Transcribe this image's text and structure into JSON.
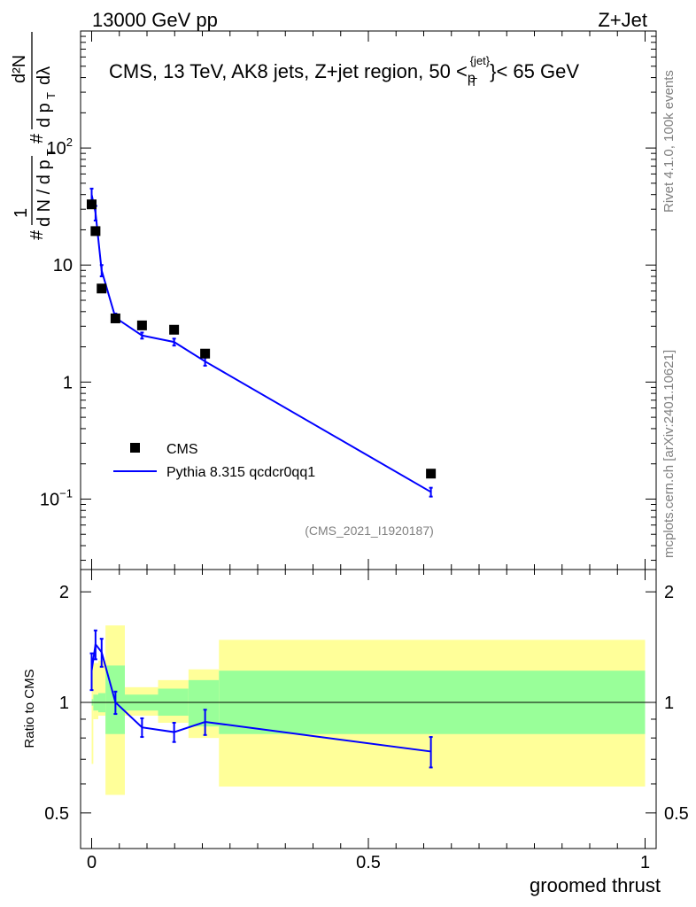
{
  "header": {
    "left": "13000 GeV pp",
    "right": "Z+Jet"
  },
  "side_labels": {
    "rivet": "Rivet 4.1.0,  100k events",
    "mcplots": "mcplots.cern.ch [arXiv:2401.10621]"
  },
  "main_plot": {
    "title_parts": {
      "prefix": "CMS, 13 TeV, AK8 jets, Z+jet region, 50 <",
      "p": "p",
      "sup": "{jet}",
      "sub": "T",
      "suffix": "}< 65 GeV"
    },
    "ylabel": "# 1/(dN/dp_T)  # d²N/(dp_T dλ)",
    "ylabel_parts": {
      "hash": "#",
      "one": "1",
      "dn": "d N / d p",
      "t": "T",
      "d2n": "d²N",
      "dpdl": "d p",
      "dl": "dλ"
    },
    "y_ticks": [
      {
        "v": 0.1,
        "base": "10",
        "exp": "−1"
      },
      {
        "v": 1,
        "label": "1"
      },
      {
        "v": 10,
        "label": "10"
      },
      {
        "v": 100,
        "base": "10",
        "exp": "2"
      }
    ],
    "analysis_tag": "(CMS_2021_I1920187)",
    "legend": [
      {
        "label": "CMS",
        "color": "#000000"
      },
      {
        "label": "Pythia 8.315 qcdcr0qq1",
        "color": "#0000ff"
      }
    ]
  },
  "ratio_plot": {
    "ylabel": "Ratio to CMS",
    "y_ticks": [
      {
        "v": 0.5,
        "label": "0.5"
      },
      {
        "v": 1,
        "label": "1"
      },
      {
        "v": 2,
        "label": "2"
      }
    ]
  },
  "x_axis": {
    "label": "groomed thrust",
    "ticks": [
      {
        "v": 0,
        "label": "0"
      },
      {
        "v": 0.5,
        "label": "0.5"
      },
      {
        "v": 1,
        "label": "1"
      }
    ]
  },
  "colors": {
    "mc": "#0000ff",
    "band_outer": "#ffff99",
    "band_inner": "#99ff99"
  },
  "chart_data": {
    "type": "scatter",
    "title": "CMS, 13 TeV, AK8 jets, Z+jet region, 50 < p_T^{jet} < 65 GeV",
    "xlabel": "groomed thrust",
    "xlim": [
      -0.02,
      1.02
    ],
    "main_ylim": [
      0.025,
      1000
    ],
    "main_yscale": "log",
    "ratio_ylim": [
      0.4,
      2.3
    ],
    "ratio_yscale": "log",
    "series": [
      {
        "name": "CMS",
        "x": [
          0.0,
          0.007,
          0.018,
          0.043,
          0.091,
          0.149,
          0.205,
          0.613
        ],
        "y": [
          33,
          19.5,
          6.3,
          3.5,
          3.05,
          2.8,
          1.75,
          0.165
        ]
      },
      {
        "name": "Pythia 8.315 qcdcr0qq1",
        "x": [
          0.0,
          0.007,
          0.018,
          0.043,
          0.091,
          0.149,
          0.205,
          0.613
        ],
        "y": [
          40,
          28,
          9,
          3.55,
          2.5,
          2.2,
          1.5,
          0.115
        ],
        "yerr": [
          5,
          4,
          1,
          0.3,
          0.15,
          0.15,
          0.12,
          0.01
        ]
      }
    ],
    "ratio": {
      "name": "Pythia 8.315 qcdcr0qq1 / CMS",
      "x": [
        0.0,
        0.007,
        0.018,
        0.043,
        0.091,
        0.149,
        0.205,
        0.613
      ],
      "y": [
        1.22,
        1.44,
        1.37,
        1.0,
        0.855,
        0.83,
        0.885,
        0.735
      ],
      "yerr": [
        0.14,
        0.13,
        0.12,
        0.07,
        0.05,
        0.05,
        0.07,
        0.07
      ]
    },
    "ratio_bands": [
      {
        "x0": 0.0,
        "x1": 0.003,
        "outer": [
          0.68,
          1.28
        ],
        "inner": [
          0.98,
          1.02
        ]
      },
      {
        "x0": 0.003,
        "x1": 0.012,
        "outer": [
          0.9,
          1.28
        ],
        "inner": [
          0.95,
          1.05
        ]
      },
      {
        "x0": 0.012,
        "x1": 0.025,
        "outer": [
          0.92,
          1.3
        ],
        "inner": [
          0.94,
          1.06
        ]
      },
      {
        "x0": 0.025,
        "x1": 0.06,
        "outer": [
          0.56,
          1.62
        ],
        "inner": [
          0.82,
          1.26
        ]
      },
      {
        "x0": 0.06,
        "x1": 0.12,
        "outer": [
          0.92,
          1.1
        ],
        "inner": [
          0.95,
          1.05
        ]
      },
      {
        "x0": 0.12,
        "x1": 0.175,
        "outer": [
          0.88,
          1.15
        ],
        "inner": [
          0.92,
          1.09
        ]
      },
      {
        "x0": 0.175,
        "x1": 0.23,
        "outer": [
          0.8,
          1.23
        ],
        "inner": [
          0.86,
          1.15
        ]
      },
      {
        "x0": 0.23,
        "x1": 1.0,
        "outer": [
          0.59,
          1.48
        ],
        "inner": [
          0.82,
          1.22
        ]
      }
    ]
  }
}
